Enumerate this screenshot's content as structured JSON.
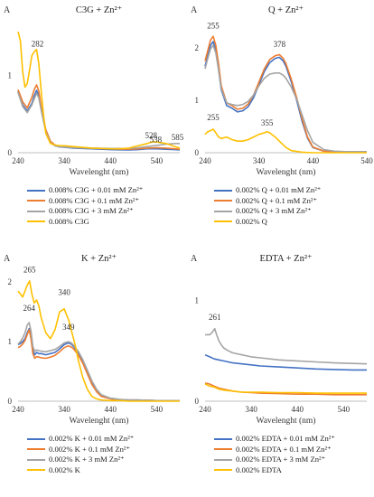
{
  "chart_data": [
    {
      "type": "line",
      "title": "C3G + Zn²⁺",
      "ylabel": "A",
      "xlabel": "Wavelenght (nm)",
      "xlim": [
        240,
        590
      ],
      "ylim": [
        0,
        1.7
      ],
      "xticks": [
        240,
        340,
        440,
        540
      ],
      "yticks": [
        0,
        1
      ],
      "annotations": [
        {
          "text": "282",
          "x": 282,
          "y": 1.33
        },
        {
          "text": "528",
          "x": 528,
          "y": 0.14
        },
        {
          "text": "538",
          "x": 538,
          "y": 0.09
        },
        {
          "text": "585",
          "x": 585,
          "y": 0.12
        }
      ],
      "series": [
        {
          "name": "0.008% C3G + 0.01 mM Zn²⁺",
          "color": "#4472C4",
          "x": [
            240,
            250,
            260,
            270,
            275,
            280,
            285,
            290,
            300,
            310,
            320,
            330,
            340,
            360,
            400,
            440,
            480,
            500,
            520,
            540,
            560,
            580,
            590
          ],
          "y": [
            0.8,
            0.62,
            0.54,
            0.64,
            0.74,
            0.81,
            0.74,
            0.57,
            0.28,
            0.14,
            0.09,
            0.075,
            0.07,
            0.06,
            0.05,
            0.04,
            0.035,
            0.04,
            0.05,
            0.05,
            0.045,
            0.04,
            0.035
          ]
        },
        {
          "name": "0.008% C3G + 0.1 mM Zn²⁺",
          "color": "#ED7D31",
          "x": [
            240,
            250,
            260,
            270,
            275,
            280,
            285,
            290,
            300,
            310,
            320,
            330,
            340,
            360,
            400,
            440,
            480,
            500,
            520,
            540,
            560,
            580,
            590
          ],
          "y": [
            0.82,
            0.66,
            0.58,
            0.72,
            0.82,
            0.88,
            0.8,
            0.6,
            0.3,
            0.15,
            0.1,
            0.085,
            0.08,
            0.07,
            0.06,
            0.05,
            0.045,
            0.05,
            0.06,
            0.065,
            0.06,
            0.05,
            0.045
          ]
        },
        {
          "name": "0.008% C3G + 3 mM Zn²⁺",
          "color": "#A5A5A5",
          "x": [
            240,
            250,
            260,
            270,
            275,
            280,
            285,
            290,
            300,
            310,
            320,
            330,
            340,
            360,
            400,
            440,
            480,
            500,
            520,
            540,
            560,
            580,
            590
          ],
          "y": [
            0.78,
            0.6,
            0.52,
            0.62,
            0.7,
            0.77,
            0.71,
            0.55,
            0.27,
            0.13,
            0.09,
            0.08,
            0.075,
            0.065,
            0.06,
            0.055,
            0.055,
            0.065,
            0.08,
            0.095,
            0.11,
            0.12,
            0.12
          ]
        },
        {
          "name": "0.008% C3G",
          "color": "#FFC000",
          "x": [
            240,
            245,
            250,
            255,
            260,
            265,
            270,
            275,
            280,
            285,
            290,
            295,
            300,
            310,
            320,
            330,
            340,
            360,
            400,
            440,
            460,
            480,
            500,
            520,
            530,
            540,
            560,
            580,
            590
          ],
          "y": [
            1.57,
            1.45,
            1.05,
            0.85,
            0.9,
            1.08,
            1.26,
            1.31,
            1.34,
            1.15,
            0.8,
            0.5,
            0.25,
            0.12,
            0.1,
            0.09,
            0.09,
            0.08,
            0.06,
            0.05,
            0.05,
            0.06,
            0.09,
            0.12,
            0.14,
            0.14,
            0.12,
            0.08,
            0.06
          ]
        }
      ]
    },
    {
      "type": "line",
      "title": "Q + Zn²⁺",
      "ylabel": "A",
      "xlabel": "Wavelenght (nm)",
      "xlim": [
        240,
        540
      ],
      "ylim": [
        0,
        2.5
      ],
      "xticks": [
        240,
        340,
        440,
        540
      ],
      "yticks": [
        0,
        1,
        2
      ],
      "annotations": [
        {
          "text": "255",
          "x": 255,
          "y": 2.3
        },
        {
          "text": "378",
          "x": 378,
          "y": 1.95
        },
        {
          "text": "255",
          "x": 255,
          "y": 0.55
        },
        {
          "text": "355",
          "x": 355,
          "y": 0.45
        }
      ],
      "series": [
        {
          "name": "0.002% Q + 0.01 mM Zn²⁺",
          "color": "#4472C4",
          "x": [
            240,
            245,
            250,
            255,
            260,
            265,
            270,
            280,
            290,
            300,
            310,
            320,
            330,
            340,
            350,
            360,
            370,
            378,
            385,
            390,
            400,
            410,
            420,
            430,
            440,
            460,
            480,
            500,
            520,
            540
          ],
          "y": [
            1.65,
            1.85,
            2.05,
            2.12,
            1.95,
            1.6,
            1.2,
            0.9,
            0.85,
            0.78,
            0.8,
            0.88,
            1.05,
            1.3,
            1.55,
            1.72,
            1.8,
            1.82,
            1.75,
            1.65,
            1.35,
            1.0,
            0.6,
            0.28,
            0.1,
            0.03,
            0.02,
            0.02,
            0.02,
            0.02
          ]
        },
        {
          "name": "0.002% Q + 0.1 mM Zn²⁺",
          "color": "#ED7D31",
          "x": [
            240,
            245,
            250,
            255,
            260,
            265,
            270,
            280,
            290,
            300,
            310,
            320,
            330,
            340,
            350,
            360,
            370,
            378,
            385,
            390,
            400,
            410,
            420,
            430,
            440,
            460,
            480,
            500,
            520,
            540
          ],
          "y": [
            1.75,
            1.95,
            2.15,
            2.22,
            2.05,
            1.7,
            1.28,
            0.95,
            0.9,
            0.83,
            0.85,
            0.93,
            1.1,
            1.35,
            1.6,
            1.78,
            1.85,
            1.87,
            1.8,
            1.7,
            1.4,
            1.05,
            0.65,
            0.3,
            0.11,
            0.03,
            0.02,
            0.02,
            0.02,
            0.02
          ]
        },
        {
          "name": "0.002% Q + 3 mM Zn²⁺",
          "color": "#A5A5A5",
          "x": [
            240,
            245,
            250,
            255,
            260,
            265,
            270,
            280,
            290,
            300,
            310,
            320,
            330,
            340,
            350,
            360,
            370,
            378,
            385,
            390,
            400,
            410,
            420,
            430,
            440,
            460,
            480,
            500,
            520,
            540
          ],
          "y": [
            1.6,
            1.8,
            1.98,
            2.05,
            1.9,
            1.58,
            1.22,
            0.95,
            0.92,
            0.9,
            0.92,
            0.98,
            1.1,
            1.28,
            1.42,
            1.5,
            1.52,
            1.52,
            1.48,
            1.42,
            1.25,
            1.02,
            0.72,
            0.42,
            0.2,
            0.06,
            0.03,
            0.02,
            0.02,
            0.02
          ]
        },
        {
          "name": "0.002% Q",
          "color": "#FFC000",
          "x": [
            240,
            245,
            250,
            255,
            260,
            265,
            270,
            280,
            290,
            300,
            310,
            320,
            330,
            340,
            350,
            355,
            360,
            370,
            380,
            390,
            400,
            420,
            440,
            460,
            480,
            500,
            520,
            540
          ],
          "y": [
            0.35,
            0.4,
            0.42,
            0.45,
            0.38,
            0.3,
            0.27,
            0.3,
            0.25,
            0.22,
            0.22,
            0.25,
            0.3,
            0.35,
            0.38,
            0.4,
            0.38,
            0.3,
            0.2,
            0.1,
            0.04,
            0.01,
            0.0,
            0.0,
            0.0,
            0.0,
            0.0,
            0.0
          ]
        }
      ]
    },
    {
      "type": "line",
      "title": "K + Zn²⁺",
      "ylabel": "A",
      "xlabel": "Wavelenght (nm)",
      "xlim": [
        240,
        590
      ],
      "ylim": [
        0,
        2.2
      ],
      "xticks": [
        240,
        340,
        440,
        540
      ],
      "yticks": [
        0,
        1,
        2
      ],
      "annotations": [
        {
          "text": "265",
          "x": 265,
          "y": 2.1
        },
        {
          "text": "340",
          "x": 340,
          "y": 1.72
        },
        {
          "text": "264",
          "x": 264,
          "y": 1.46
        },
        {
          "text": "349",
          "x": 349,
          "y": 1.14
        }
      ],
      "series": [
        {
          "name": "0.002% K + 0.01 mM Zn²⁺",
          "color": "#4472C4",
          "x": [
            240,
            245,
            250,
            255,
            260,
            264,
            268,
            272,
            276,
            280,
            285,
            290,
            300,
            310,
            320,
            330,
            340,
            349,
            355,
            360,
            370,
            380,
            390,
            400,
            410,
            420,
            440,
            460,
            480,
            500,
            540,
            590
          ],
          "y": [
            0.95,
            0.97,
            1.0,
            1.05,
            1.15,
            1.22,
            1.1,
            0.85,
            0.78,
            0.82,
            0.8,
            0.8,
            0.78,
            0.8,
            0.82,
            0.88,
            0.95,
            0.98,
            0.96,
            0.92,
            0.82,
            0.68,
            0.5,
            0.32,
            0.18,
            0.1,
            0.05,
            0.03,
            0.02,
            0.02,
            0.01,
            0.01
          ]
        },
        {
          "name": "0.002% K + 0.1 mM Zn²⁺",
          "color": "#ED7D31",
          "x": [
            240,
            245,
            250,
            255,
            260,
            264,
            268,
            272,
            276,
            280,
            285,
            290,
            300,
            310,
            320,
            330,
            340,
            349,
            355,
            360,
            370,
            380,
            390,
            400,
            410,
            420,
            440,
            460,
            480,
            500,
            540,
            590
          ],
          "y": [
            0.9,
            0.92,
            0.96,
            1.02,
            1.12,
            1.2,
            1.05,
            0.8,
            0.72,
            0.75,
            0.74,
            0.73,
            0.72,
            0.74,
            0.77,
            0.83,
            0.9,
            0.93,
            0.91,
            0.88,
            0.78,
            0.64,
            0.46,
            0.28,
            0.16,
            0.08,
            0.04,
            0.02,
            0.02,
            0.02,
            0.01,
            0.01
          ]
        },
        {
          "name": "0.002% K + 3 mM Zn²⁺",
          "color": "#A5A5A5",
          "x": [
            240,
            245,
            250,
            255,
            260,
            264,
            268,
            272,
            276,
            280,
            285,
            290,
            300,
            310,
            320,
            330,
            340,
            349,
            355,
            360,
            370,
            380,
            390,
            400,
            410,
            420,
            440,
            460,
            480,
            500,
            540,
            590
          ],
          "y": [
            0.96,
            1.0,
            1.06,
            1.15,
            1.28,
            1.32,
            1.18,
            0.92,
            0.84,
            0.86,
            0.85,
            0.84,
            0.83,
            0.85,
            0.87,
            0.92,
            0.98,
            1.0,
            0.98,
            0.94,
            0.84,
            0.7,
            0.52,
            0.34,
            0.2,
            0.11,
            0.05,
            0.03,
            0.02,
            0.02,
            0.01,
            0.01
          ]
        },
        {
          "name": "0.002% K",
          "color": "#FFC000",
          "x": [
            240,
            245,
            250,
            255,
            260,
            265,
            270,
            275,
            280,
            285,
            290,
            300,
            310,
            320,
            330,
            340,
            345,
            350,
            355,
            360,
            365,
            370,
            380,
            390,
            400,
            410,
            420,
            440,
            460,
            480,
            500,
            540,
            590
          ],
          "y": [
            1.85,
            1.8,
            1.75,
            1.85,
            1.95,
            2.02,
            1.8,
            1.65,
            1.7,
            1.6,
            1.4,
            1.15,
            1.05,
            1.2,
            1.5,
            1.55,
            1.45,
            1.35,
            1.2,
            1.05,
            0.9,
            0.7,
            0.4,
            0.2,
            0.08,
            0.04,
            0.02,
            0.01,
            0.01,
            0.0,
            0.0,
            0.0,
            0.0
          ]
        }
      ]
    },
    {
      "type": "line",
      "title": "EDTA + Zn²⁺",
      "ylabel": "A",
      "xlabel": "Wavelenght (nm)",
      "xlim": [
        240,
        590
      ],
      "ylim": [
        0,
        1.3
      ],
      "xticks": [
        240,
        340,
        440,
        540
      ],
      "yticks": [
        0,
        1
      ],
      "annotations": [
        {
          "text": "261",
          "x": 261,
          "y": 0.77
        }
      ],
      "series": [
        {
          "name": "0.002% EDTA + 0.01 mM Zn²⁺",
          "color": "#4472C4",
          "x": [
            240,
            250,
            260,
            270,
            280,
            300,
            320,
            340,
            360,
            400,
            440,
            480,
            520,
            560,
            590
          ],
          "y": [
            0.46,
            0.44,
            0.42,
            0.41,
            0.4,
            0.38,
            0.37,
            0.36,
            0.35,
            0.34,
            0.33,
            0.32,
            0.315,
            0.31,
            0.31
          ]
        },
        {
          "name": "0.002% EDTA + 0.1 mM Zn²⁺",
          "color": "#ED7D31",
          "x": [
            240,
            250,
            260,
            270,
            280,
            300,
            320,
            340,
            360,
            400,
            440,
            480,
            520,
            560,
            590
          ],
          "y": [
            0.18,
            0.17,
            0.15,
            0.13,
            0.12,
            0.1,
            0.09,
            0.085,
            0.08,
            0.075,
            0.07,
            0.07,
            0.065,
            0.065,
            0.065
          ]
        },
        {
          "name": "0.002% EDTA + 3 mM Zn²⁺",
          "color": "#A5A5A5",
          "x": [
            240,
            250,
            255,
            261,
            265,
            270,
            275,
            280,
            290,
            300,
            320,
            340,
            360,
            400,
            440,
            480,
            520,
            560,
            590
          ],
          "y": [
            0.66,
            0.66,
            0.68,
            0.72,
            0.66,
            0.6,
            0.56,
            0.53,
            0.5,
            0.48,
            0.46,
            0.44,
            0.43,
            0.41,
            0.4,
            0.39,
            0.38,
            0.375,
            0.37
          ]
        },
        {
          "name": "0.002% EDTA",
          "color": "#FFC000",
          "x": [
            240,
            250,
            260,
            270,
            280,
            300,
            320,
            340,
            360,
            400,
            440,
            480,
            520,
            560,
            590
          ],
          "y": [
            0.17,
            0.15,
            0.14,
            0.12,
            0.11,
            0.1,
            0.09,
            0.09,
            0.09,
            0.085,
            0.085,
            0.08,
            0.08,
            0.08,
            0.08
          ]
        }
      ]
    }
  ]
}
